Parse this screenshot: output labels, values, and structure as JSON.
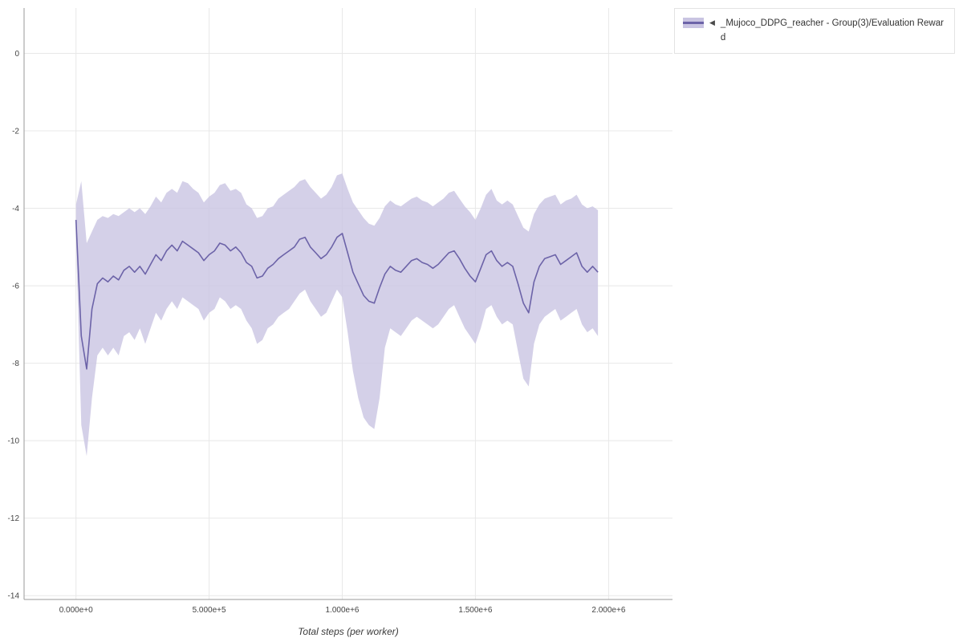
{
  "legend": {
    "collapse_icon": "◀",
    "label": "_Mujoco_DDPG_reacher - Group(3)/Evaluation Reward"
  },
  "chart_data": {
    "type": "line",
    "title": "",
    "xlabel": "Total steps (per worker)",
    "ylabel": "",
    "grid": true,
    "legend_position": "outside-top-right",
    "x_range": [
      -195000,
      2240000
    ],
    "y_range": [
      -14.1,
      1.17
    ],
    "x_ticks": [
      {
        "value": 0,
        "label": "0.000e+0"
      },
      {
        "value": 500000,
        "label": "5.000e+5"
      },
      {
        "value": 1000000,
        "label": "1.000e+6"
      },
      {
        "value": 1500000,
        "label": "1.500e+6"
      },
      {
        "value": 2000000,
        "label": "2.000e+6"
      }
    ],
    "y_ticks": [
      {
        "value": 0,
        "label": "0"
      },
      {
        "value": -2,
        "label": "-2"
      },
      {
        "value": -4,
        "label": "-4"
      },
      {
        "value": -6,
        "label": "-6"
      },
      {
        "value": -8,
        "label": "-8"
      },
      {
        "value": -10,
        "label": "-10"
      },
      {
        "value": -12,
        "label": "-12"
      },
      {
        "value": -14,
        "label": "-14"
      }
    ],
    "line_color": "#6c63a8",
    "band_color": "#c9c4e2",
    "grid_color": "#e8e8e8",
    "axis_color": "#9a9a9a",
    "tick_color": "#444444",
    "series": [
      {
        "name": "_Mujoco_DDPG_reacher - Group(3)/Evaluation Reward",
        "x": [
          0,
          20000,
          40000,
          60000,
          80000,
          100000,
          120000,
          140000,
          160000,
          180000,
          200000,
          220000,
          240000,
          260000,
          280000,
          300000,
          320000,
          340000,
          360000,
          380000,
          400000,
          420000,
          440000,
          460000,
          480000,
          500000,
          520000,
          540000,
          560000,
          580000,
          600000,
          620000,
          640000,
          660000,
          680000,
          700000,
          720000,
          740000,
          760000,
          780000,
          800000,
          820000,
          840000,
          860000,
          880000,
          900000,
          920000,
          940000,
          960000,
          980000,
          1000000,
          1020000,
          1040000,
          1060000,
          1080000,
          1100000,
          1120000,
          1140000,
          1160000,
          1180000,
          1200000,
          1220000,
          1240000,
          1260000,
          1280000,
          1300000,
          1320000,
          1340000,
          1360000,
          1380000,
          1400000,
          1420000,
          1440000,
          1460000,
          1480000,
          1500000,
          1520000,
          1540000,
          1560000,
          1580000,
          1600000,
          1620000,
          1640000,
          1660000,
          1680000,
          1700000,
          1720000,
          1740000,
          1760000,
          1780000,
          1800000,
          1820000,
          1840000,
          1860000,
          1880000,
          1900000,
          1920000,
          1940000,
          1960000
        ],
        "mean": [
          -4.3,
          -7.3,
          -8.15,
          -6.6,
          -5.95,
          -5.8,
          -5.9,
          -5.75,
          -5.85,
          -5.6,
          -5.5,
          -5.65,
          -5.5,
          -5.7,
          -5.45,
          -5.2,
          -5.35,
          -5.1,
          -4.95,
          -5.1,
          -4.85,
          -4.95,
          -5.05,
          -5.15,
          -5.35,
          -5.2,
          -5.1,
          -4.9,
          -4.95,
          -5.1,
          -5.0,
          -5.15,
          -5.4,
          -5.5,
          -5.8,
          -5.75,
          -5.55,
          -5.45,
          -5.3,
          -5.2,
          -5.1,
          -5.0,
          -4.8,
          -4.75,
          -5.0,
          -5.15,
          -5.3,
          -5.2,
          -5.0,
          -4.75,
          -4.65,
          -5.15,
          -5.65,
          -5.95,
          -6.25,
          -6.4,
          -6.45,
          -6.05,
          -5.7,
          -5.5,
          -5.6,
          -5.65,
          -5.5,
          -5.35,
          -5.3,
          -5.4,
          -5.45,
          -5.55,
          -5.45,
          -5.3,
          -5.15,
          -5.1,
          -5.3,
          -5.55,
          -5.75,
          -5.9,
          -5.55,
          -5.2,
          -5.1,
          -5.35,
          -5.5,
          -5.4,
          -5.5,
          -5.95,
          -6.45,
          -6.7,
          -5.9,
          -5.5,
          -5.3,
          -5.25,
          -5.2,
          -5.45,
          -5.35,
          -5.25,
          -5.15,
          -5.5,
          -5.65,
          -5.5,
          -5.65
        ],
        "upper": [
          -3.9,
          -3.3,
          -4.9,
          -4.6,
          -4.3,
          -4.2,
          -4.25,
          -4.15,
          -4.2,
          -4.1,
          -4.0,
          -4.1,
          -4.0,
          -4.15,
          -3.95,
          -3.7,
          -3.85,
          -3.6,
          -3.5,
          -3.6,
          -3.3,
          -3.35,
          -3.5,
          -3.6,
          -3.85,
          -3.7,
          -3.6,
          -3.4,
          -3.35,
          -3.55,
          -3.5,
          -3.6,
          -3.9,
          -4.0,
          -4.25,
          -4.2,
          -4.0,
          -3.95,
          -3.75,
          -3.65,
          -3.55,
          -3.45,
          -3.3,
          -3.25,
          -3.45,
          -3.6,
          -3.75,
          -3.65,
          -3.45,
          -3.15,
          -3.1,
          -3.5,
          -3.85,
          -4.05,
          -4.25,
          -4.4,
          -4.45,
          -4.25,
          -3.95,
          -3.8,
          -3.9,
          -3.95,
          -3.85,
          -3.75,
          -3.7,
          -3.8,
          -3.85,
          -3.95,
          -3.85,
          -3.75,
          -3.6,
          -3.55,
          -3.75,
          -3.95,
          -4.1,
          -4.3,
          -4.0,
          -3.65,
          -3.5,
          -3.8,
          -3.9,
          -3.8,
          -3.9,
          -4.2,
          -4.5,
          -4.6,
          -4.15,
          -3.9,
          -3.75,
          -3.7,
          -3.65,
          -3.9,
          -3.8,
          -3.75,
          -3.65,
          -3.9,
          -4.0,
          -3.95,
          -4.05
        ],
        "lower": [
          -4.8,
          -9.6,
          -10.4,
          -8.9,
          -7.8,
          -7.6,
          -7.8,
          -7.6,
          -7.8,
          -7.3,
          -7.2,
          -7.4,
          -7.1,
          -7.5,
          -7.1,
          -6.7,
          -6.9,
          -6.6,
          -6.4,
          -6.6,
          -6.3,
          -6.4,
          -6.5,
          -6.6,
          -6.9,
          -6.7,
          -6.6,
          -6.3,
          -6.4,
          -6.6,
          -6.5,
          -6.6,
          -6.9,
          -7.1,
          -7.5,
          -7.4,
          -7.1,
          -7.0,
          -6.8,
          -6.7,
          -6.6,
          -6.4,
          -6.2,
          -6.1,
          -6.4,
          -6.6,
          -6.8,
          -6.7,
          -6.4,
          -6.1,
          -6.3,
          -7.2,
          -8.2,
          -8.9,
          -9.4,
          -9.6,
          -9.7,
          -8.9,
          -7.6,
          -7.1,
          -7.2,
          -7.3,
          -7.1,
          -6.9,
          -6.8,
          -6.9,
          -7.0,
          -7.1,
          -7.0,
          -6.8,
          -6.6,
          -6.5,
          -6.8,
          -7.1,
          -7.3,
          -7.5,
          -7.1,
          -6.6,
          -6.5,
          -6.8,
          -7.0,
          -6.9,
          -7.0,
          -7.7,
          -8.4,
          -8.6,
          -7.5,
          -7.0,
          -6.8,
          -6.7,
          -6.6,
          -6.9,
          -6.8,
          -6.7,
          -6.6,
          -7.0,
          -7.2,
          -7.1,
          -7.3
        ]
      }
    ]
  }
}
